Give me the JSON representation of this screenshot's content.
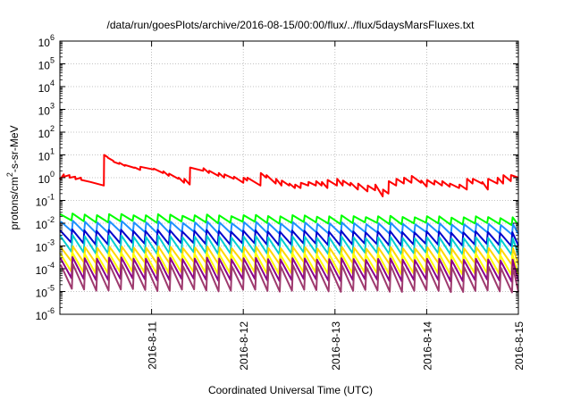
{
  "chart_data": {
    "type": "line",
    "title": "/data/run/goesPlots/archive/2016-08-15/00:00/flux/../flux/5daysMarsFluxes.txt",
    "xlabel": "Coordinated Universal Time (UTC)",
    "ylabel_main": "protons/cm",
    "ylabel_sup": "2",
    "ylabel_rest": "-s-sr-MeV",
    "x_range": [
      "2016-08-10T00:00",
      "2016-08-15T00:00"
    ],
    "x_ticks": [
      "2016-8-11",
      "2016-8-12",
      "2016-8-13",
      "2016-8-14",
      "2016-8-15"
    ],
    "y_scale": "log",
    "y_range": [
      1e-06,
      1000000.0
    ],
    "y_ticks": [
      {
        "base": "10",
        "exp": "-6",
        "value": 1e-06
      },
      {
        "base": "10",
        "exp": "-5",
        "value": 1e-05
      },
      {
        "base": "10",
        "exp": "-4",
        "value": 0.0001
      },
      {
        "base": "10",
        "exp": "-3",
        "value": 0.001
      },
      {
        "base": "10",
        "exp": "-2",
        "value": 0.01
      },
      {
        "base": "10",
        "exp": "-1",
        "value": 0.1
      },
      {
        "base": "10",
        "exp": "0",
        "value": 1
      },
      {
        "base": "10",
        "exp": "1",
        "value": 10
      },
      {
        "base": "10",
        "exp": "2",
        "value": 100
      },
      {
        "base": "10",
        "exp": "3",
        "value": 1000
      },
      {
        "base": "10",
        "exp": "4",
        "value": 10000
      },
      {
        "base": "10",
        "exp": "5",
        "value": 100000
      },
      {
        "base": "10",
        "exp": "6",
        "value": 1000000
      }
    ],
    "grid": true,
    "legend": "none",
    "series": [
      {
        "color": "#ff0000",
        "x": [
          "2016-08-10T00:00",
          "2016-08-10T00:05",
          "2016-08-10T01:00",
          "2016-08-10T01:05",
          "2016-08-10T02:30",
          "2016-08-10T02:35",
          "2016-08-10T04:00",
          "2016-08-10T04:05",
          "2016-08-10T05:30",
          "2016-08-10T05:35",
          "2016-08-10T08:00",
          "2016-08-10T11:30",
          "2016-08-10T11:35",
          "2016-08-10T12:30",
          "2016-08-10T12:35",
          "2016-08-10T14:00",
          "2016-08-10T14:05",
          "2016-08-10T15:30",
          "2016-08-10T15:35",
          "2016-08-10T17:00",
          "2016-08-10T17:05",
          "2016-08-10T19:30",
          "2016-08-10T19:35",
          "2016-08-10T21:00",
          "2016-08-10T21:05",
          "2016-08-11T00:30",
          "2016-08-11T00:35",
          "2016-08-11T03:00",
          "2016-08-11T03:05",
          "2016-08-11T04:30",
          "2016-08-11T04:35",
          "2016-08-11T07:00",
          "2016-08-11T07:05",
          "2016-08-11T08:30",
          "2016-08-11T08:35",
          "2016-08-11T10:00",
          "2016-08-11T10:05",
          "2016-08-11T13:30",
          "2016-08-11T13:35",
          "2016-08-11T15:00",
          "2016-08-11T15:05",
          "2016-08-11T17:30",
          "2016-08-11T17:35",
          "2016-08-11T19:00",
          "2016-08-11T19:05",
          "2016-08-11T21:30",
          "2016-08-11T21:35",
          "2016-08-12T00:00",
          "2016-08-12T00:05",
          "2016-08-12T01:00",
          "2016-08-12T01:05",
          "2016-08-12T04:30",
          "2016-08-12T04:35",
          "2016-08-12T06:00",
          "2016-08-12T06:05",
          "2016-08-12T08:30",
          "2016-08-12T08:35",
          "2016-08-12T10:00",
          "2016-08-12T10:05",
          "2016-08-12T12:00",
          "2016-08-12T12:05",
          "2016-08-12T13:30",
          "2016-08-12T13:35",
          "2016-08-12T15:00",
          "2016-08-12T15:05",
          "2016-08-12T17:00",
          "2016-08-12T17:05",
          "2016-08-12T19:00",
          "2016-08-12T19:05",
          "2016-08-12T20:30",
          "2016-08-12T20:35",
          "2016-08-12T22:00",
          "2016-08-12T22:05",
          "2016-08-13T00:30",
          "2016-08-13T00:35",
          "2016-08-13T02:00",
          "2016-08-13T02:05",
          "2016-08-13T04:00",
          "2016-08-13T04:05",
          "2016-08-13T06:00",
          "2016-08-13T06:05",
          "2016-08-13T08:30",
          "2016-08-13T08:35",
          "2016-08-13T10:30",
          "2016-08-13T10:35",
          "2016-08-13T12:30",
          "2016-08-13T12:35",
          "2016-08-13T14:00",
          "2016-08-13T14:05",
          "2016-08-13T16:00",
          "2016-08-13T16:05",
          "2016-08-13T18:00",
          "2016-08-13T18:05",
          "2016-08-13T20:00",
          "2016-08-13T20:05",
          "2016-08-13T22:30",
          "2016-08-13T22:35",
          "2016-08-14T00:00",
          "2016-08-14T00:05",
          "2016-08-14T02:00",
          "2016-08-14T02:05",
          "2016-08-14T04:00",
          "2016-08-14T04:05",
          "2016-08-14T06:00",
          "2016-08-14T06:05",
          "2016-08-14T08:30",
          "2016-08-14T08:35",
          "2016-08-14T10:30",
          "2016-08-14T10:35",
          "2016-08-14T12:00",
          "2016-08-14T12:05",
          "2016-08-14T14:30",
          "2016-08-14T14:35",
          "2016-08-14T16:00",
          "2016-08-14T16:05",
          "2016-08-14T18:30",
          "2016-08-14T18:35",
          "2016-08-14T20:00",
          "2016-08-14T20:05",
          "2016-08-14T22:00",
          "2016-08-14T22:05",
          "2016-08-15T00:00"
        ],
        "y": [
          1.0,
          0.85,
          1.4,
          1.1,
          1.3,
          1.0,
          1.1,
          0.85,
          1.0,
          0.8,
          0.65,
          0.45,
          10.0,
          8.0,
          7.5,
          5.5,
          5.0,
          4.0,
          4.5,
          3.3,
          3.6,
          2.7,
          2.8,
          2.2,
          3.0,
          2.3,
          2.5,
          1.6,
          1.9,
          1.2,
          1.5,
          0.9,
          1.0,
          0.6,
          0.9,
          0.5,
          2.8,
          2.0,
          2.6,
          1.6,
          2.0,
          1.2,
          1.6,
          1.0,
          1.4,
          0.9,
          1.1,
          0.6,
          1.0,
          0.75,
          1.0,
          0.45,
          1.6,
          1.0,
          1.3,
          0.55,
          0.9,
          0.45,
          0.75,
          0.45,
          0.55,
          0.35,
          0.5,
          0.35,
          0.6,
          0.45,
          0.65,
          0.45,
          0.7,
          0.45,
          0.65,
          0.35,
          0.8,
          0.45,
          0.9,
          0.45,
          0.75,
          0.45,
          0.6,
          0.3,
          0.55,
          0.25,
          0.45,
          0.28,
          0.5,
          0.15,
          0.3,
          0.2,
          0.7,
          0.45,
          0.9,
          0.55,
          1.0,
          0.6,
          1.2,
          0.6,
          0.75,
          0.4,
          0.8,
          0.5,
          0.75,
          0.45,
          0.7,
          0.4,
          0.55,
          0.35,
          0.5,
          0.3,
          0.9,
          0.55,
          0.9,
          0.55,
          0.65,
          0.3,
          0.9,
          0.55,
          1.0,
          0.55,
          1.3,
          0.7,
          1.3,
          1.0
        ]
      },
      {
        "color": "#00ff00",
        "sawtooth": {
          "period_hours": 3.2,
          "peak": [
            0.025,
            0.018
          ],
          "trough": [
            0.012,
            0.009
          ]
        }
      },
      {
        "color": "#1e90ff",
        "sawtooth": {
          "period_hours": 3.2,
          "peak": [
            0.012,
            0.009
          ],
          "trough": [
            0.004,
            0.0035
          ]
        }
      },
      {
        "color": "#0000cd",
        "sawtooth": {
          "period_hours": 3.2,
          "peak": [
            0.005,
            0.004
          ],
          "trough": [
            0.0013,
            0.0011
          ]
        }
      },
      {
        "color": "#00ced1",
        "sawtooth": {
          "period_hours": 3.2,
          "peak": [
            0.0028,
            0.0022
          ],
          "trough": [
            0.0005,
            0.00045
          ]
        }
      },
      {
        "color": "#ffd700",
        "sawtooth": {
          "period_hours": 3.2,
          "peak": [
            0.0009,
            0.0008
          ],
          "trough": [
            0.00018,
            0.00016
          ]
        }
      },
      {
        "color": "#ffff00",
        "sawtooth": {
          "period_hours": 3.2,
          "peak": [
            0.0005,
            0.00045
          ],
          "trough": [
            7e-05,
            6e-05
          ]
        }
      },
      {
        "color": "#8b008b",
        "sawtooth": {
          "period_hours": 3.2,
          "peak": [
            0.0003,
            0.00025
          ],
          "trough": [
            3.5e-05,
            3e-05
          ]
        }
      },
      {
        "color": "#9e3a6e",
        "sawtooth": {
          "period_hours": 3.2,
          "peak": [
            0.00015,
            0.00012
          ],
          "trough": [
            1.2e-05,
            1e-05
          ]
        }
      }
    ]
  }
}
